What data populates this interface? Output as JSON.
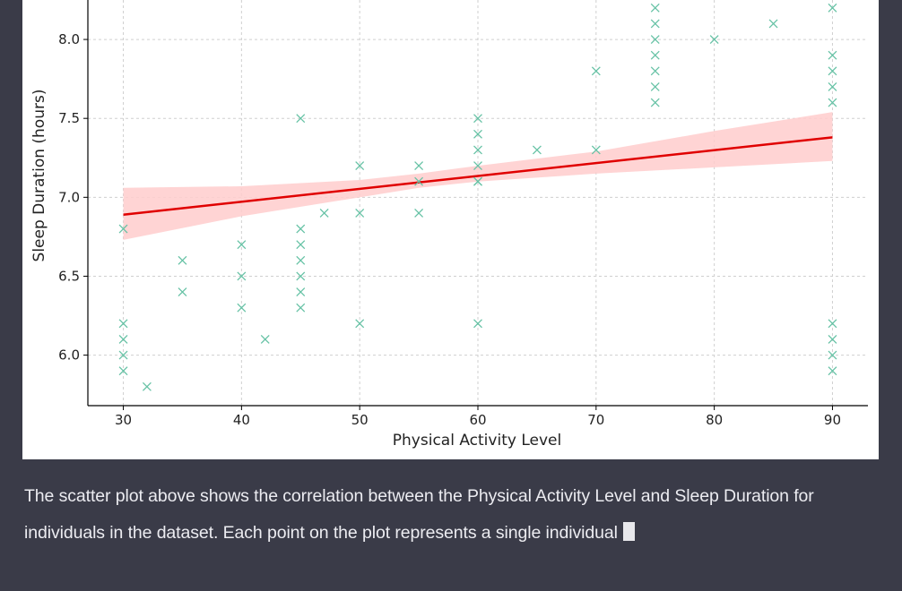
{
  "colors": {
    "page_bg": "#3a3b48",
    "panel_bg": "#ffffff",
    "marker": "#66c2a5",
    "fit_line": "#e00000",
    "confidence_band": "#ffcccc",
    "text": "#ececf1"
  },
  "message": {
    "text": "The scatter plot above shows the correlation between the Physical Activity Level and Sleep Duration for individuals in the dataset. Each point on the plot represents a single individual"
  },
  "chart_data": {
    "type": "scatter",
    "title": "",
    "xlabel": "Physical Activity Level",
    "ylabel": "Sleep Duration (hours)",
    "xlim": [
      27,
      93
    ],
    "ylim": [
      5.68,
      8.25
    ],
    "xticks": [
      "30",
      "40",
      "50",
      "60",
      "70",
      "80",
      "90"
    ],
    "yticks": [
      "6.0",
      "6.5",
      "7.0",
      "7.5",
      "8.0"
    ],
    "grid": true,
    "grid_style": "dashed",
    "marker": "x",
    "points": {
      "x": [
        30,
        30,
        30,
        30,
        30,
        32,
        35,
        35,
        40,
        40,
        40,
        42,
        45,
        45,
        45,
        45,
        45,
        45,
        45,
        47,
        50,
        50,
        50,
        55,
        55,
        55,
        60,
        60,
        60,
        60,
        60,
        60,
        60,
        65,
        70,
        70,
        75,
        75,
        75,
        75,
        75,
        75,
        75,
        80,
        85,
        90,
        90,
        90,
        90,
        90,
        90,
        90,
        90,
        90
      ],
      "y": [
        6.8,
        6.2,
        6.1,
        6.0,
        5.9,
        5.8,
        6.6,
        6.4,
        6.7,
        6.5,
        6.3,
        6.1,
        7.5,
        6.8,
        6.7,
        6.6,
        6.5,
        6.4,
        6.3,
        6.9,
        7.2,
        6.9,
        6.2,
        7.2,
        7.1,
        6.9,
        7.5,
        7.4,
        7.3,
        7.2,
        7.1,
        6.2,
        7.1,
        7.3,
        7.8,
        7.3,
        8.2,
        8.1,
        8.0,
        7.9,
        7.8,
        7.7,
        7.6,
        8.0,
        8.1,
        8.2,
        7.9,
        7.8,
        7.7,
        7.6,
        6.2,
        6.1,
        6.0,
        5.9
      ]
    },
    "fit_line": {
      "x": [
        30,
        90
      ],
      "y": [
        6.89,
        7.38
      ]
    },
    "confidence_band": {
      "x": [
        30,
        40,
        50,
        55,
        60,
        70,
        80,
        90
      ],
      "lower": [
        6.73,
        6.88,
        7.0,
        7.06,
        7.1,
        7.15,
        7.19,
        7.23
      ],
      "upper": [
        7.06,
        7.07,
        7.11,
        7.15,
        7.2,
        7.29,
        7.42,
        7.54
      ]
    }
  }
}
